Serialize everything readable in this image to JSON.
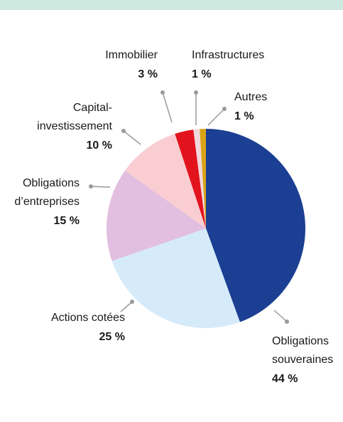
{
  "chart_data": {
    "type": "pie",
    "categories": [
      "Obligations souveraines",
      "Actions cotées",
      "Obligations d’entreprises",
      "Capital-investissement",
      "Immobilier",
      "Infrastructures",
      "Autres"
    ],
    "values": [
      44,
      25,
      15,
      10,
      3,
      1,
      1
    ],
    "value_labels": [
      "44 %",
      "25 %",
      "15 %",
      "10 %",
      "3 %",
      "1 %",
      "1 %"
    ],
    "colors": [
      "#1b3f92",
      "#d5ebfa",
      "#e2bee0",
      "#f9cdd2",
      "#e3131d",
      "#f0d8db",
      "#d9a417"
    ]
  }
}
